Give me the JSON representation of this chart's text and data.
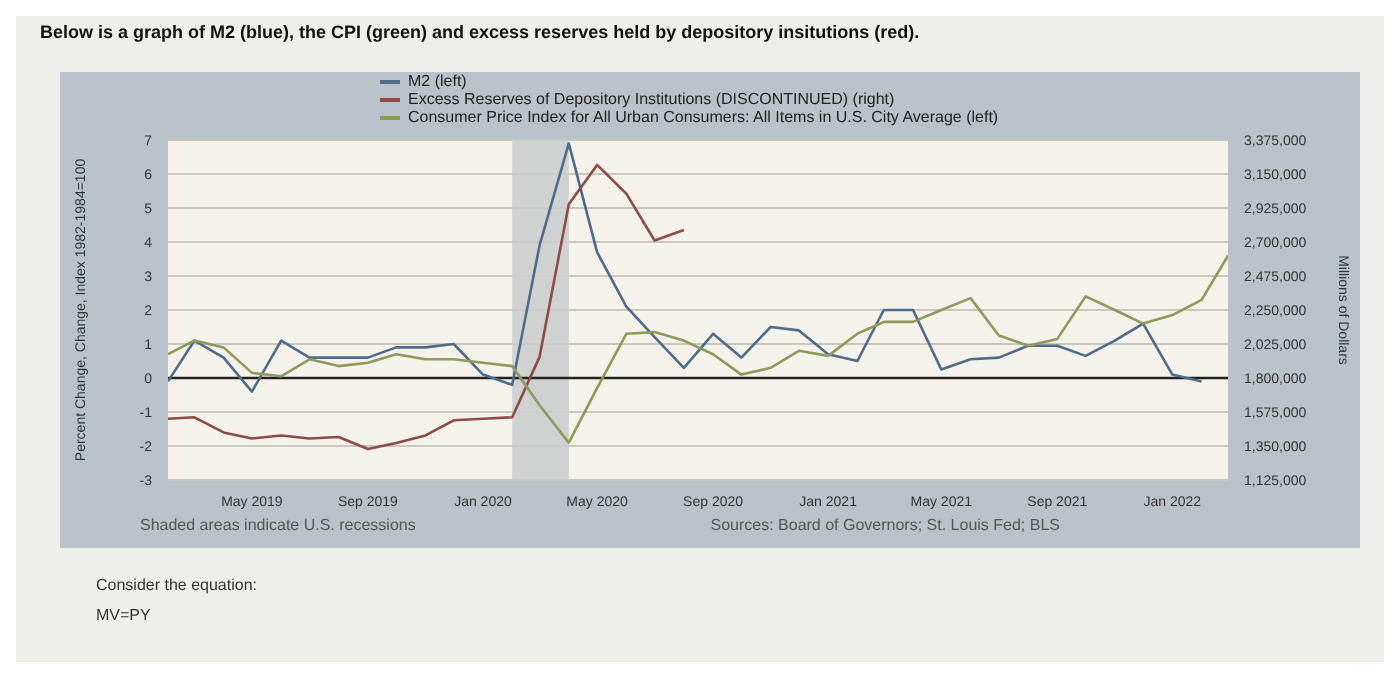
{
  "chart_data": {
    "type": "line",
    "title": "Below is a graph of M2 (blue), the CPI (green) and excess reserves held by depository insitutions (red).",
    "ylabel": "Percent Change, Change, Index 1982-1984=100",
    "y2label": "Millions of Dollars",
    "x": [
      "2019-02",
      "2019-03",
      "2019-04",
      "2019-05",
      "2019-06",
      "2019-07",
      "2019-08",
      "2019-09",
      "2019-10",
      "2019-11",
      "2019-12",
      "2020-01",
      "2020-02",
      "2020-03",
      "2020-04",
      "2020-05",
      "2020-06",
      "2020-07",
      "2020-08",
      "2020-09",
      "2020-10",
      "2020-11",
      "2020-12",
      "2021-01",
      "2021-02",
      "2021-03",
      "2021-04",
      "2021-05",
      "2021-06",
      "2021-07",
      "2021-08",
      "2021-09",
      "2021-10",
      "2021-11",
      "2021-12",
      "2022-01",
      "2022-02",
      "2022-03"
    ],
    "series": [
      {
        "name": "M2 (left)",
        "color": "#4f6b8a",
        "values": [
          -0.1,
          1.1,
          0.6,
          -0.4,
          1.1,
          0.6,
          0.6,
          0.6,
          0.9,
          0.9,
          1.0,
          0.1,
          -0.2,
          3.9,
          6.9,
          3.7,
          2.1,
          1.2,
          0.3,
          1.3,
          0.6,
          1.5,
          1.4,
          0.7,
          0.5,
          2.0,
          2.0,
          0.25,
          0.55,
          0.6,
          0.95,
          0.95,
          0.65,
          1.1,
          1.6,
          0.1,
          -0.1,
          null
        ]
      },
      {
        "name": "Excess Reserves of Depository Institutions (DISCONTINUED) (right)",
        "color": "#8e4b45",
        "axis": "y2",
        "values": [
          1530000,
          1540000,
          1440000,
          1400000,
          1420000,
          1400000,
          1410000,
          1330000,
          1370000,
          1420000,
          1520000,
          1530000,
          1540000,
          1940000,
          2950000,
          3210000,
          3020000,
          2710000,
          2780000,
          null,
          null,
          null,
          null,
          null,
          null,
          null,
          null,
          null,
          null,
          null,
          null,
          null,
          null,
          null,
          null,
          null,
          null,
          null
        ]
      },
      {
        "name": "Consumer Price Index for All Urban Consumers: All Items in U.S. City Average (left)",
        "color": "#8d9a5a",
        "values": [
          0.7,
          1.1,
          0.9,
          0.15,
          0.05,
          0.55,
          0.35,
          0.45,
          0.7,
          0.55,
          0.55,
          0.45,
          0.35,
          -0.8,
          -1.9,
          -0.3,
          1.3,
          1.35,
          1.1,
          0.7,
          0.1,
          0.3,
          0.8,
          0.65,
          1.3,
          1.65,
          1.65,
          2.0,
          2.35,
          1.25,
          0.95,
          1.15,
          2.4,
          2.0,
          1.6,
          1.85,
          2.3,
          3.6
        ]
      }
    ],
    "xlim": [
      "2019-02",
      "2022-03"
    ],
    "xticks": [
      {
        "value": "2019-05",
        "label": "May 2019"
      },
      {
        "value": "2019-09",
        "label": "Sep 2019"
      },
      {
        "value": "2020-01",
        "label": "Jan 2020"
      },
      {
        "value": "2020-05",
        "label": "May 2020"
      },
      {
        "value": "2020-09",
        "label": "Sep 2020"
      },
      {
        "value": "2021-01",
        "label": "Jan 2021"
      },
      {
        "value": "2021-05",
        "label": "May 2021"
      },
      {
        "value": "2021-09",
        "label": "Sep 2021"
      },
      {
        "value": "2022-01",
        "label": "Jan 2022"
      }
    ],
    "ylim": [
      -3,
      7
    ],
    "yticks": [
      -3,
      -2,
      -1,
      0,
      1,
      2,
      3,
      4,
      5,
      6,
      7
    ],
    "y2lim": [
      1125000,
      3375000
    ],
    "y2ticks": [
      {
        "value": 1125000,
        "label": "1,125,000"
      },
      {
        "value": 1350000,
        "label": "1,350,000"
      },
      {
        "value": 1575000,
        "label": "1,575,000"
      },
      {
        "value": 1800000,
        "label": "1,800,000"
      },
      {
        "value": 2025000,
        "label": "2,025,000"
      },
      {
        "value": 2250000,
        "label": "2,250,000"
      },
      {
        "value": 2475000,
        "label": "2,475,000"
      },
      {
        "value": 2700000,
        "label": "2,700,000"
      },
      {
        "value": 2925000,
        "label": "2,925,000"
      },
      {
        "value": 3150000,
        "label": "3,150,000"
      },
      {
        "value": 3375000,
        "label": "3,375,000"
      }
    ],
    "ref_lines": [
      {
        "axis": "y",
        "value": 0,
        "color": "#222222"
      }
    ],
    "bands": [
      {
        "axis": "x",
        "from": "2020-02",
        "to": "2020-04",
        "color": "#c9ccce"
      }
    ],
    "grid": "y",
    "legend": "top left",
    "annotations": [
      "Shaded areas indicate U.S. recessions",
      "Sources: Board of Governors; St. Louis Fed; BLS",
      "Consider the equation:",
      "MV=PY"
    ]
  }
}
